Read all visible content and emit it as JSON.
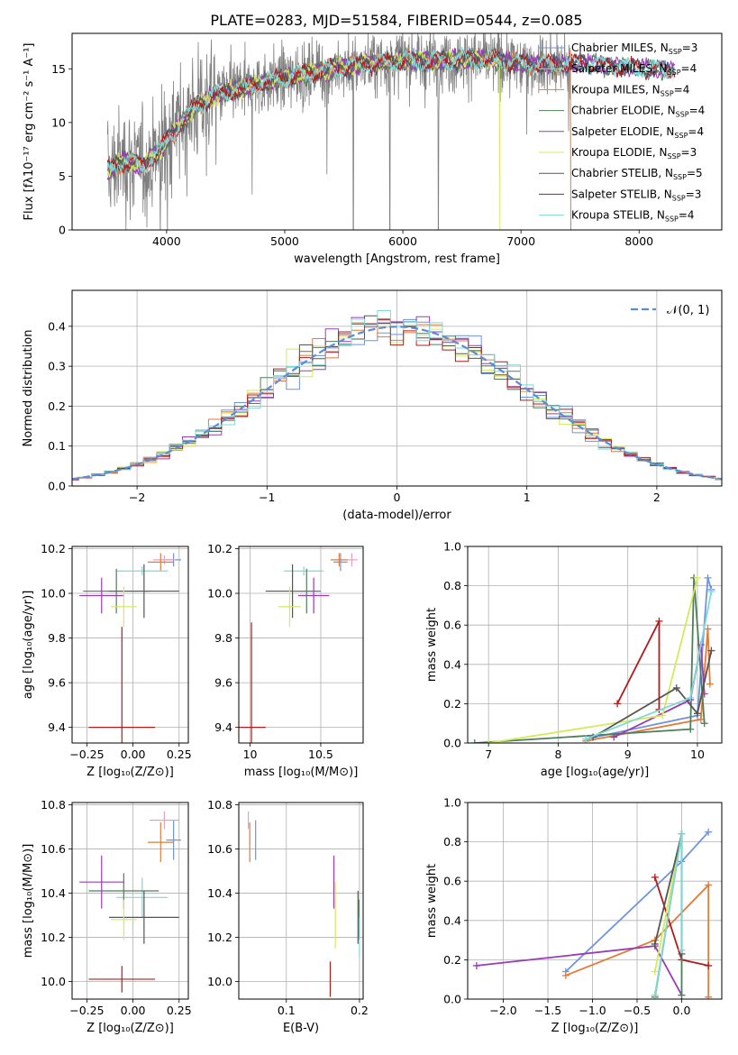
{
  "figure_title": "PLATE=0283, MJD=51584, FIBERID=0544, z=0.085",
  "chart_data": [
    {
      "id": "spectrum",
      "type": "line",
      "title": "PLATE=0283, MJD=51584, FIBERID=0544, z=0.085",
      "xlabel": "wavelength [Angstrom, rest frame]",
      "ylabel": "Flux [fλ10⁻¹⁷ erg cm⁻² s⁻¹ A⁻¹]",
      "xlim": [
        3200,
        8700
      ],
      "ylim": [
        0,
        18.3
      ],
      "xticks": [
        4000,
        5000,
        6000,
        7000,
        8000
      ],
      "yticks": [
        0,
        5,
        10,
        15
      ],
      "grid": false,
      "legend_position": "top-right",
      "continuum": {
        "x": [
          3500,
          3650,
          3800,
          3950,
          4050,
          4150,
          4250,
          4400,
          4550,
          4700,
          4850,
          5000,
          5200,
          5400,
          5600,
          5800,
          6000,
          6200,
          6400,
          6600,
          6800,
          7000,
          7200,
          7400,
          7600,
          7800,
          8000,
          8200,
          8300
        ],
        "y": [
          5.5,
          6.5,
          6.0,
          7.5,
          9.0,
          10.3,
          11.5,
          12.5,
          13.0,
          13.3,
          13.8,
          14.2,
          14.6,
          15.0,
          15.3,
          15.6,
          15.8,
          15.7,
          15.8,
          15.9,
          15.8,
          15.5,
          15.4,
          15.4,
          15.5,
          15.2,
          15.1,
          14.9,
          15.0
        ]
      },
      "data_noise_scale": 3.0,
      "series": [
        {
          "name": "Chabrier MILES, Nₛₛₚ=3",
          "label_main": "Chabrier MILES, N",
          "label_sub": "SSP",
          "label_tail": "=3",
          "color": "#6f94dc"
        },
        {
          "name": "Salpeter MILES, Nₛₛₚ=4",
          "label_main": "Salpeter MILES, N",
          "label_sub": "SSP",
          "label_tail": "=4",
          "color": "#e8e8e8"
        },
        {
          "name": "Kroupa MILES, Nₛₛₚ=4",
          "label_main": "Kroupa MILES, N",
          "label_sub": "SSP",
          "label_tail": "=4",
          "color": "#e07b39"
        },
        {
          "name": "Chabrier ELODIE, Nₛₛₚ=4",
          "label_main": "Chabrier ELODIE, N",
          "label_sub": "SSP",
          "label_tail": "=4",
          "color": "#4d7f5a"
        },
        {
          "name": "Salpeter ELODIE, Nₛₛₚ=4",
          "label_main": "Salpeter ELODIE, N",
          "label_sub": "SSP",
          "label_tail": "=4",
          "color": "#9a3bb6"
        },
        {
          "name": "Kroupa ELODIE, Nₛₛₚ=3",
          "label_main": "Kroupa ELODIE, N",
          "label_sub": "SSP",
          "label_tail": "=3",
          "color": "#d4ea5a"
        },
        {
          "name": "Chabrier STELIB, Nₛₛₚ=5",
          "label_main": "Chabrier STELIB, N",
          "label_sub": "SSP",
          "label_tail": "=5",
          "color": "#555555"
        },
        {
          "name": "Salpeter STELIB, Nₛₛₚ=3",
          "label_main": "Salpeter STELIB, N",
          "label_sub": "SSP",
          "label_tail": "=3",
          "color": "#b01c1c"
        },
        {
          "name": "Kroupa STELIB, Nₛₛₚ=4",
          "label_main": "Kroupa STELIB, N",
          "label_sub": "SSP",
          "label_tail": "=4",
          "color": "#7fd8d8"
        }
      ]
    },
    {
      "id": "residuals",
      "type": "histogram",
      "xlabel": "(data-model)/error",
      "ylabel": "Normed distribution",
      "xlim": [
        -2.5,
        2.5
      ],
      "ylim": [
        0,
        0.49
      ],
      "xticks": [
        -2,
        -1,
        0,
        1,
        2
      ],
      "yticks": [
        0.0,
        0.1,
        0.2,
        0.3,
        0.4
      ],
      "grid": true,
      "legend_position": "top-right",
      "legend_label": "𝒩(0, 1)",
      "reference_curve": {
        "name": "N(0,1)",
        "mean": 0,
        "sigma": 1,
        "color": "#5b8dd6",
        "style": "dashed"
      },
      "bin_width": 0.1
    },
    {
      "id": "age_vs_Z",
      "type": "errorbar",
      "xlabel": "Z [log₁₀(Z/Z⊙)]",
      "ylabel": "age  [log₁₀(age/yr)]",
      "xlim": [
        -0.33,
        0.3
      ],
      "ylim": [
        9.33,
        10.21
      ],
      "xticks": [
        -0.25,
        0.0,
        0.25
      ],
      "xticklabels": [
        "−0.25",
        "0.00",
        "0.25"
      ],
      "yticks": [
        9.4,
        9.6,
        9.8,
        10.0,
        10.2
      ],
      "grid": true,
      "points": [
        {
          "x": 0.22,
          "xerr": 0.04,
          "y": 10.15,
          "yerr": 0.03,
          "color": "#6f94dc"
        },
        {
          "x": 0.17,
          "xerr": 0.06,
          "y": 10.15,
          "yerr": 0.02,
          "color": "#e8a0c0"
        },
        {
          "x": 0.15,
          "xerr": 0.07,
          "y": 10.14,
          "yerr": 0.04,
          "color": "#e07b39"
        },
        {
          "x": 0.05,
          "xerr": 0.14,
          "y": 10.1,
          "yerr": 0.02,
          "color": "#7fd8d8"
        },
        {
          "x": -0.09,
          "xerr": 0.18,
          "y": 10.01,
          "yerr": 0.1,
          "color": "#4d7f5a"
        },
        {
          "x": -0.17,
          "xerr": 0.12,
          "y": 9.99,
          "yerr": 0.08,
          "color": "#9a3bb6"
        },
        {
          "x": 0.06,
          "xerr": 0.19,
          "y": 10.01,
          "yerr": 0.12,
          "color": "#555555"
        },
        {
          "x": -0.05,
          "xerr": 0.07,
          "y": 9.94,
          "yerr": 0.09,
          "color": "#d4ea5a"
        },
        {
          "x": -0.06,
          "xerr": 0.18,
          "y": 9.4,
          "yerr": 0.45,
          "color": "#b01c1c"
        }
      ]
    },
    {
      "id": "age_vs_mass",
      "type": "errorbar",
      "xlabel": "mass [log₁₀(M/M⊙)]",
      "ylabel": "",
      "xlim": [
        9.92,
        10.8
      ],
      "ylim": [
        9.33,
        10.21
      ],
      "xticks": [
        10.0,
        10.5
      ],
      "yticks": [
        9.4,
        9.6,
        9.8,
        10.0,
        10.2
      ],
      "grid": true,
      "points": [
        {
          "x": 10.72,
          "xerr": 0.04,
          "y": 10.15,
          "yerr": 0.03,
          "color": "#e8a0c0"
        },
        {
          "x": 10.63,
          "xerr": 0.06,
          "y": 10.15,
          "yerr": 0.03,
          "color": "#e07b39"
        },
        {
          "x": 10.64,
          "xerr": 0.05,
          "y": 10.14,
          "yerr": 0.04,
          "color": "#6f94dc"
        },
        {
          "x": 10.38,
          "xerr": 0.14,
          "y": 10.1,
          "yerr": 0.02,
          "color": "#7fd8d8"
        },
        {
          "x": 10.3,
          "xerr": 0.19,
          "y": 10.01,
          "yerr": 0.12,
          "color": "#555555"
        },
        {
          "x": 10.4,
          "xerr": 0.1,
          "y": 10.01,
          "yerr": 0.1,
          "color": "#4d7f5a"
        },
        {
          "x": 10.45,
          "xerr": 0.11,
          "y": 9.99,
          "yerr": 0.08,
          "color": "#9a3bb6"
        },
        {
          "x": 10.28,
          "xerr": 0.08,
          "y": 9.94,
          "yerr": 0.09,
          "color": "#d4ea5a"
        },
        {
          "x": 10.01,
          "xerr": 0.1,
          "y": 9.4,
          "yerr": 0.47,
          "color": "#b01c1c"
        }
      ]
    },
    {
      "id": "weight_vs_age",
      "type": "line",
      "xlabel": "age  [log₁₀(age/yr)]",
      "ylabel": "mass weight",
      "xlim": [
        6.7,
        10.35
      ],
      "ylim": [
        0,
        1.0
      ],
      "xticks": [
        7,
        8,
        9,
        10
      ],
      "yticks": [
        0.0,
        0.2,
        0.4,
        0.6,
        0.8,
        1.0
      ],
      "grid": true,
      "series": [
        {
          "color": "#6f94dc",
          "x": [
            8.4,
            10.0,
            10.15,
            10.2
          ],
          "y": [
            0.02,
            0.14,
            0.84,
            0.78
          ]
        },
        {
          "color": "#e07b39",
          "x": [
            8.4,
            10.05,
            10.15,
            10.18
          ],
          "y": [
            0.01,
            0.12,
            0.58,
            0.3
          ]
        },
        {
          "color": "#4d7f5a",
          "x": [
            6.8,
            9.9,
            9.95,
            10.1
          ],
          "y": [
            0.0,
            0.07,
            0.84,
            0.1
          ]
        },
        {
          "color": "#9a3bb6",
          "x": [
            8.8,
            9.9,
            10.05,
            10.1
          ],
          "y": [
            0.03,
            0.22,
            0.5,
            0.25
          ]
        },
        {
          "color": "#d4ea5a",
          "x": [
            7.0,
            9.5,
            10.0
          ],
          "y": [
            0.0,
            0.14,
            0.84
          ]
        },
        {
          "color": "#555555",
          "x": [
            8.5,
            9.7,
            10.0,
            10.2
          ],
          "y": [
            0.03,
            0.28,
            0.15,
            0.47
          ]
        },
        {
          "color": "#b01c1c",
          "x": [
            8.85,
            9.45,
            9.45
          ],
          "y": [
            0.2,
            0.62,
            0.17
          ]
        },
        {
          "color": "#7fd8d8",
          "x": [
            8.4,
            9.9,
            10.2
          ],
          "y": [
            0.02,
            0.23,
            0.77
          ]
        }
      ]
    },
    {
      "id": "mass_vs_Z",
      "type": "errorbar",
      "xlabel": "Z [log₁₀(Z/Z⊙)]",
      "ylabel": "mass [log₁₀(M/M⊙)]",
      "xlim": [
        -0.33,
        0.3
      ],
      "ylim": [
        9.92,
        10.81
      ],
      "xticks": [
        -0.25,
        0.0,
        0.25
      ],
      "xticklabels": [
        "−0.25",
        "0.00",
        "0.25"
      ],
      "yticks": [
        10.0,
        10.2,
        10.4,
        10.6,
        10.8
      ],
      "grid": true,
      "points": [
        {
          "x": 0.22,
          "xerr": 0.04,
          "y": 10.64,
          "yerr": 0.09,
          "color": "#6f94dc"
        },
        {
          "x": 0.17,
          "xerr": 0.08,
          "y": 10.73,
          "yerr": 0.04,
          "color": "#e8a0c0"
        },
        {
          "x": 0.15,
          "xerr": 0.07,
          "y": 10.63,
          "yerr": 0.09,
          "color": "#e07b39"
        },
        {
          "x": 0.05,
          "xerr": 0.14,
          "y": 10.38,
          "yerr": 0.09,
          "color": "#7fd8d8"
        },
        {
          "x": -0.05,
          "xerr": 0.19,
          "y": 10.41,
          "yerr": 0.08,
          "color": "#4d7f5a"
        },
        {
          "x": -0.17,
          "xerr": 0.12,
          "y": 10.45,
          "yerr": 0.12,
          "color": "#9a3bb6"
        },
        {
          "x": 0.06,
          "xerr": 0.19,
          "y": 10.29,
          "yerr": 0.12,
          "color": "#555555"
        },
        {
          "x": -0.05,
          "xerr": 0.07,
          "y": 10.28,
          "yerr": 0.09,
          "color": "#d4ea5a"
        },
        {
          "x": -0.06,
          "xerr": 0.18,
          "y": 10.01,
          "yerr": 0.06,
          "color": "#b01c1c"
        }
      ]
    },
    {
      "id": "mass_vs_ebv",
      "type": "errorbar",
      "xlabel": "E(B-V)",
      "ylabel": "",
      "xlim": [
        0.035,
        0.205
      ],
      "ylim": [
        9.92,
        10.81
      ],
      "xticks": [
        0.1,
        0.2
      ],
      "yticks": [
        10.0,
        10.2,
        10.4,
        10.6,
        10.8
      ],
      "grid": true,
      "points": [
        {
          "x": 0.048,
          "xerr": 0,
          "y": 10.73,
          "yerr": 0.04,
          "color": "#e8a0c0"
        },
        {
          "x": 0.05,
          "xerr": 0,
          "y": 10.63,
          "yerr": 0.09,
          "color": "#e07b39"
        },
        {
          "x": 0.058,
          "xerr": 0,
          "y": 10.64,
          "yerr": 0.09,
          "color": "#6f94dc"
        },
        {
          "x": 0.165,
          "xerr": 0,
          "y": 10.45,
          "yerr": 0.12,
          "color": "#9a3bb6"
        },
        {
          "x": 0.167,
          "xerr": 0,
          "y": 10.3,
          "yerr": 0.15,
          "color": "#d4ea5a"
        },
        {
          "x": 0.16,
          "xerr": 0,
          "y": 10.01,
          "yerr": 0.08,
          "color": "#b01c1c"
        },
        {
          "x": 0.198,
          "xerr": 0,
          "y": 10.29,
          "yerr": 0.12,
          "color": "#555555"
        },
        {
          "x": 0.199,
          "xerr": 0,
          "y": 10.28,
          "yerr": 0.09,
          "color": "#4d7f5a"
        },
        {
          "x": 0.2,
          "xerr": 0,
          "y": 10.2,
          "yerr": 0.09,
          "color": "#7fd8d8"
        }
      ]
    },
    {
      "id": "weight_vs_Z",
      "type": "line",
      "xlabel": "Z [log₁₀(Z/Z⊙)]",
      "ylabel": "mass weight",
      "xlim": [
        -2.4,
        0.45
      ],
      "ylim": [
        0,
        1.0
      ],
      "xticks": [
        -2.0,
        -1.5,
        -1.0,
        -0.5,
        0.0
      ],
      "xticklabels": [
        "−2.0",
        "−1.5",
        "−1.0",
        "−0.5",
        "0.0"
      ],
      "yticks": [
        0.0,
        0.2,
        0.4,
        0.6,
        0.8,
        1.0
      ],
      "grid": true,
      "series": [
        {
          "color": "#6f94dc",
          "x": [
            -1.3,
            0.0,
            0.3
          ],
          "y": [
            0.14,
            0.7,
            0.85
          ]
        },
        {
          "color": "#e07b39",
          "x": [
            -1.3,
            -0.3,
            0.3,
            0.3
          ],
          "y": [
            0.12,
            0.3,
            0.58,
            0.01
          ]
        },
        {
          "color": "#9a3bb6",
          "x": [
            -2.3,
            -0.3,
            0.0
          ],
          "y": [
            0.17,
            0.27,
            0.02
          ]
        },
        {
          "color": "#b01c1c",
          "x": [
            -0.3,
            0.0,
            0.3
          ],
          "y": [
            0.62,
            0.2,
            0.17
          ]
        },
        {
          "color": "#4d7f5a",
          "x": [
            -0.3,
            0.0,
            0.0
          ],
          "y": [
            0.01,
            0.84,
            0.02
          ]
        },
        {
          "color": "#d4ea5a",
          "x": [
            -0.3,
            0.0,
            -0.3
          ],
          "y": [
            0.14,
            0.84,
            0.02
          ]
        },
        {
          "color": "#555555",
          "x": [
            -0.3,
            0.0,
            0.0
          ],
          "y": [
            0.28,
            0.84,
            0.23
          ]
        },
        {
          "color": "#7fd8d8",
          "x": [
            -0.3,
            0.0,
            0.0
          ],
          "y": [
            0.02,
            0.84,
            0.25
          ]
        }
      ]
    }
  ]
}
